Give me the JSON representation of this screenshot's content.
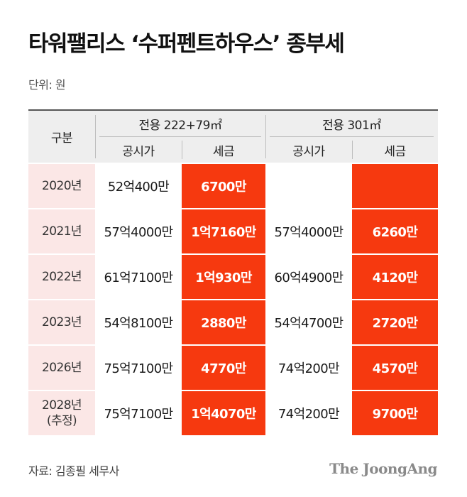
{
  "title": "타워팰리스 ‘수퍼펜트하우스’ 종부세",
  "unit": "단위: 원",
  "table": {
    "category_header": "구분",
    "groups": [
      "전용 222+79㎡",
      "전용 301㎡"
    ],
    "sub_headers": [
      "공시가",
      "세금",
      "공시가",
      "세금"
    ],
    "rows": [
      {
        "year": "2020년",
        "year_note": "",
        "price1": "52억400만",
        "tax1": "6700만",
        "price2": "",
        "tax2": ""
      },
      {
        "year": "2021년",
        "year_note": "",
        "price1": "57억4000만",
        "tax1": "1억7160만",
        "price2": "57억4000만",
        "tax2": "6260만"
      },
      {
        "year": "2022년",
        "year_note": "",
        "price1": "61억7100만",
        "tax1": "1억930만",
        "price2": "60억4900만",
        "tax2": "4120만"
      },
      {
        "year": "2023년",
        "year_note": "",
        "price1": "54억8100만",
        "tax1": "2880만",
        "price2": "54억4700만",
        "tax2": "2720만"
      },
      {
        "year": "2026년",
        "year_note": "",
        "price1": "75억7100만",
        "tax1": "4770만",
        "price2": "74억200만",
        "tax2": "4570만"
      },
      {
        "year": "2028년",
        "year_note": "(추정)",
        "price1": "75억7100만",
        "tax1": "1억4070만",
        "price2": "74억200만",
        "tax2": "9700만"
      }
    ]
  },
  "source": "자료: 김종필 세무사",
  "logo": "The JoongAng",
  "colors": {
    "accent_red": "#f6390f",
    "header_red_text": "#e8361e",
    "year_bg": "#fbe7e6",
    "header_bg": "#eeeeee"
  }
}
